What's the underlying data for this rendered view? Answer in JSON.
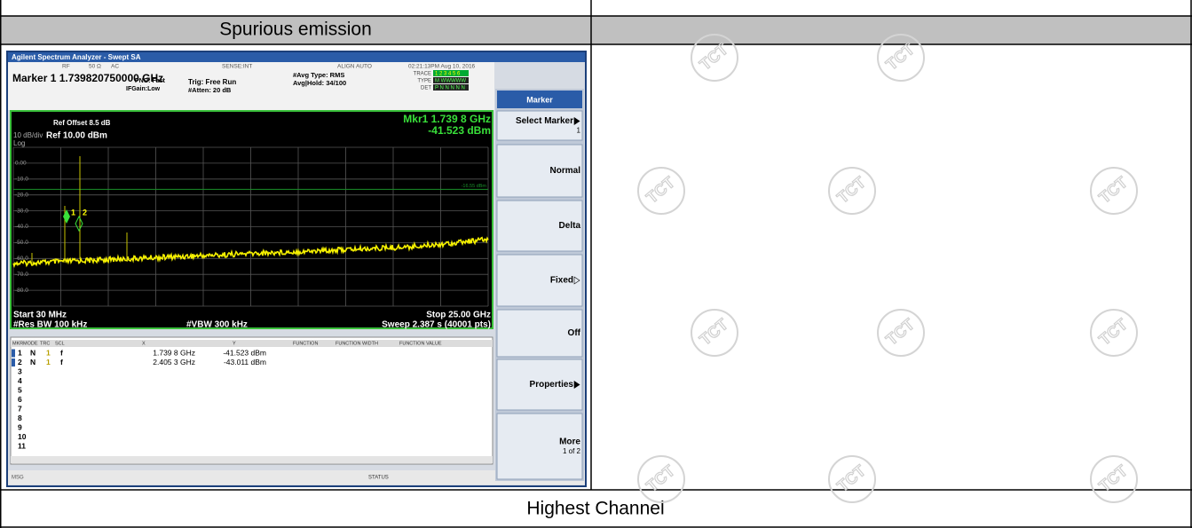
{
  "table": {
    "header": "Spurious emission",
    "caption": "Highest Channel"
  },
  "analyzer": {
    "window_title": "Agilent Spectrum Analyzer - Swept SA",
    "top_bar": [
      "RF",
      "50 Ω",
      "AC",
      "SENSE:INT",
      "ALIGN AUTO",
      "02:21:13PM Aug 10, 2016"
    ],
    "marker_readout": "Marker 1 1.739820750000 GHz",
    "pno": "PNO: Fast",
    "ifgain": "IFGain:Low",
    "trig": "Trig: Free Run",
    "atten": "#Atten: 20 dB",
    "avg_type": "#Avg Type: RMS",
    "avg_hold": "Avg|Hold: 34/100",
    "trace_labels": [
      "TRACE",
      "TYPE",
      "DET"
    ],
    "trace_values": [
      "1 2 3 4 5 6",
      "M WWWWW",
      "P N N N N N"
    ],
    "ref_offset": "Ref Offset 8.5 dB",
    "scale": "10 dB/div",
    "ref_level": "Ref 10.00 dBm",
    "scale_type": "Log",
    "mkr_freq": "Mkr1 1.739 8 GHz",
    "mkr_amp": "-41.523 dBm",
    "y_labels": [
      "0.00",
      "-10.0",
      "-20.0",
      "-30.0",
      "-40.0",
      "-50.0",
      "-60.0",
      "-70.0",
      "-80.0"
    ],
    "threshold": "-16.55 dBm",
    "marker_labels": [
      "1",
      "2"
    ],
    "start": "Start 30 MHz",
    "stop": "Stop 25.00 GHz",
    "rbw": "#Res BW 100 kHz",
    "vbw": "#VBW 300 kHz",
    "sweep": "Sweep 2.387 s (40001 pts)",
    "table_header": [
      "MKR",
      "MODE",
      "TRC",
      "SCL",
      "X",
      "Y",
      "FUNCTION",
      "FUNCTION WIDTH",
      "FUNCTION VALUE"
    ],
    "table_rows": [
      [
        "1",
        "N",
        "1",
        "f",
        "1.739 8 GHz",
        "-41.523 dBm"
      ],
      [
        "2",
        "N",
        "1",
        "f",
        "2.405 3 GHz",
        "-43.011 dBm"
      ],
      [
        "3"
      ],
      [
        "4"
      ],
      [
        "5"
      ],
      [
        "6"
      ],
      [
        "7"
      ],
      [
        "8"
      ],
      [
        "9"
      ],
      [
        "10"
      ],
      [
        "11"
      ]
    ],
    "status_msg": "MSG",
    "status": "STATUS"
  },
  "softkeys": {
    "title": "Marker",
    "keys": [
      {
        "label": "Select Marker",
        "sub": "1"
      },
      {
        "label": "Normal"
      },
      {
        "label": "Delta"
      },
      {
        "label": "Fixed"
      },
      {
        "label": "Off"
      },
      {
        "label": "Properties"
      },
      {
        "label": "More",
        "sub": "1 of 2"
      }
    ]
  },
  "watermark": "TCT"
}
